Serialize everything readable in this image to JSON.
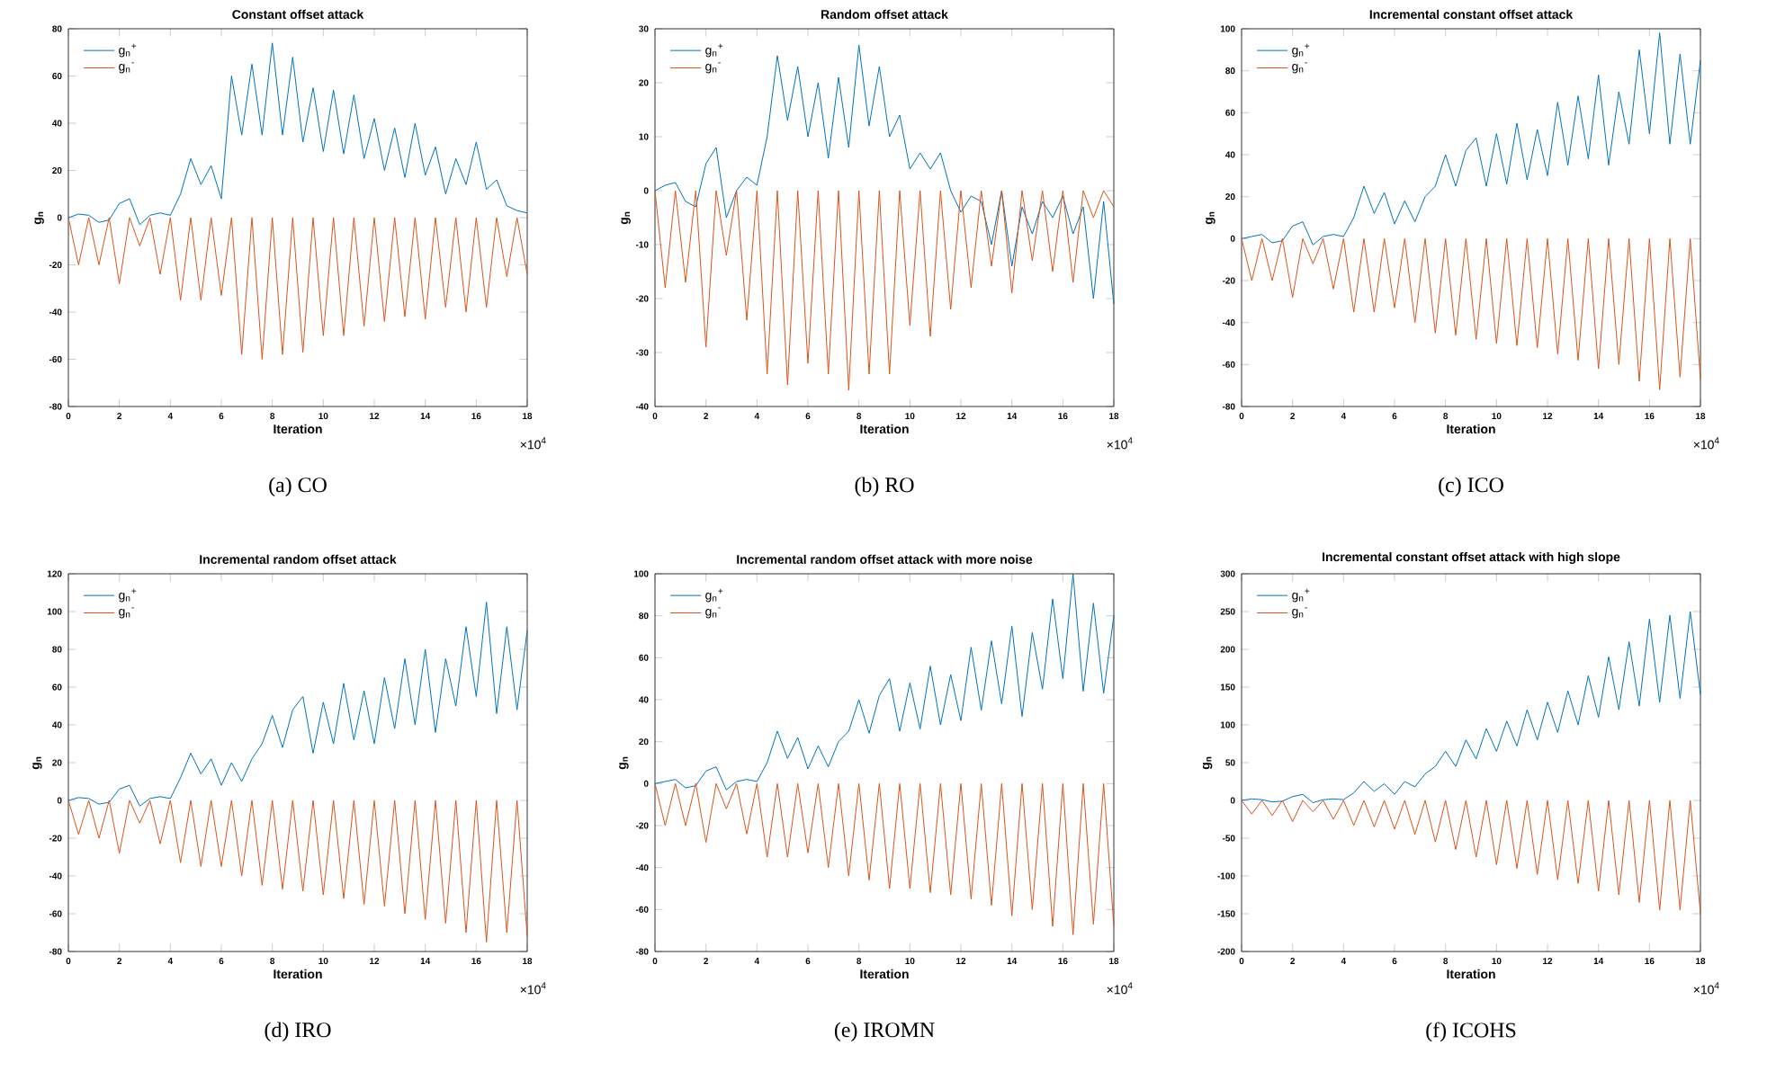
{
  "chart_data": [
    {
      "type": "line",
      "title": "Constant offset attack",
      "subtitle": "(a) CO",
      "xlabel": "Iteration",
      "ylabel": "g$_{n}$",
      "annotations": [
        "×10$^{4}$"
      ],
      "legend": "top left",
      "xlim": [
        0,
        18
      ],
      "ylim": [
        -80,
        80
      ],
      "xticks": [
        0,
        2,
        4,
        6,
        8,
        10,
        12,
        14,
        16,
        18
      ],
      "yticks": [
        -80,
        -60,
        -40,
        -20,
        0,
        20,
        40,
        60,
        80
      ],
      "x": [
        0,
        0.4,
        0.8,
        1.2,
        1.6,
        2,
        2.4,
        2.8,
        3.2,
        3.6,
        4,
        4.4,
        4.8,
        5.2,
        5.6,
        6,
        6.4,
        6.8,
        7.2,
        7.6,
        8,
        8.4,
        8.8,
        9.2,
        9.6,
        10,
        10.4,
        10.8,
        11.2,
        11.6,
        12,
        12.4,
        12.8,
        13.2,
        13.6,
        14,
        14.4,
        14.8,
        15.2,
        15.6,
        16,
        16.4,
        16.8,
        17.2,
        17.6,
        18
      ],
      "series": [
        {
          "name": "g$_{n}$$^{+}$",
          "color": "#0072bd",
          "values": [
            0,
            1.5,
            1,
            -2,
            -1,
            6,
            8,
            -3,
            1,
            2,
            1,
            10,
            25,
            14,
            22,
            8,
            60,
            35,
            65,
            35,
            74,
            35,
            68,
            32,
            55,
            28,
            54,
            27,
            52,
            25,
            42,
            20,
            38,
            17,
            40,
            18,
            30,
            10,
            25,
            14,
            32,
            12,
            16,
            5,
            3,
            2
          ]
        },
        {
          "name": "g$_{n}$$^{-}$",
          "color": "#d95319",
          "values": [
            0,
            -20,
            0,
            -20,
            0,
            -28,
            0,
            -12,
            0,
            -24,
            0,
            -35,
            0,
            -35,
            0,
            -33,
            0,
            -58,
            0,
            -60,
            0,
            -58,
            0,
            -57,
            0,
            -50,
            0,
            -50,
            0,
            -46,
            0,
            -44,
            0,
            -42,
            0,
            -43,
            0,
            -38,
            0,
            -40,
            0,
            -38,
            0,
            -25,
            0,
            -24
          ]
        }
      ]
    },
    {
      "type": "line",
      "title": "Random offset attack",
      "subtitle": "(b) RO",
      "xlabel": "Iteration",
      "ylabel": "g$_{n}$",
      "annotations": [
        "×10$^{4}$"
      ],
      "legend": "top left",
      "xlim": [
        0,
        18
      ],
      "ylim": [
        -40,
        30
      ],
      "xticks": [
        0,
        2,
        4,
        6,
        8,
        10,
        12,
        14,
        16,
        18
      ],
      "yticks": [
        -40,
        -30,
        -20,
        -10,
        0,
        10,
        20,
        30
      ],
      "x": [
        0,
        0.4,
        0.8,
        1.2,
        1.6,
        2,
        2.4,
        2.8,
        3.2,
        3.6,
        4,
        4.4,
        4.8,
        5.2,
        5.6,
        6,
        6.4,
        6.8,
        7.2,
        7.6,
        8,
        8.4,
        8.8,
        9.2,
        9.6,
        10,
        10.4,
        10.8,
        11.2,
        11.6,
        12,
        12.4,
        12.8,
        13.2,
        13.6,
        14,
        14.4,
        14.8,
        15.2,
        15.6,
        16,
        16.4,
        16.8,
        17.2,
        17.6,
        18
      ],
      "series": [
        {
          "name": "g$_{n}$$^{+}$",
          "color": "#0072bd",
          "values": [
            0,
            1,
            1.5,
            -2,
            -3,
            5,
            8,
            -5,
            0,
            2.5,
            1,
            10,
            25,
            13,
            23,
            10,
            20,
            6,
            21,
            8,
            27,
            12,
            23,
            10,
            14,
            4,
            7,
            4,
            7,
            0,
            -4,
            -1,
            -2,
            -10,
            0,
            -14,
            -3,
            -8,
            -2,
            -5,
            -1,
            -8,
            -3,
            -20,
            -2,
            -21
          ]
        },
        {
          "name": "g$_{n}$$^{-}$",
          "color": "#d95319",
          "values": [
            0,
            -18,
            0,
            -17,
            0,
            -29,
            0,
            -12,
            0,
            -24,
            0,
            -34,
            0,
            -36,
            0,
            -32,
            0,
            -34,
            0,
            -37,
            0,
            -34,
            0,
            -34,
            0,
            -25,
            0,
            -27,
            0,
            -22,
            0,
            -18,
            0,
            -14,
            0,
            -19,
            0,
            -13,
            0,
            -15,
            0,
            -17,
            0,
            -5,
            0,
            -3
          ]
        }
      ]
    },
    {
      "type": "line",
      "title": "Incremental constant offset attack",
      "subtitle": "(c) ICO",
      "xlabel": "Iteration",
      "ylabel": "g$_{n}$",
      "annotations": [
        "×10$^{4}$"
      ],
      "legend": "top left",
      "xlim": [
        0,
        18
      ],
      "ylim": [
        -80,
        100
      ],
      "xticks": [
        0,
        2,
        4,
        6,
        8,
        10,
        12,
        14,
        16,
        18
      ],
      "yticks": [
        -80,
        -60,
        -40,
        -20,
        0,
        20,
        40,
        60,
        80,
        100
      ],
      "x": [
        0,
        0.4,
        0.8,
        1.2,
        1.6,
        2,
        2.4,
        2.8,
        3.2,
        3.6,
        4,
        4.4,
        4.8,
        5.2,
        5.6,
        6,
        6.4,
        6.8,
        7.2,
        7.6,
        8,
        8.4,
        8.8,
        9.2,
        9.6,
        10,
        10.4,
        10.8,
        11.2,
        11.6,
        12,
        12.4,
        12.8,
        13.2,
        13.6,
        14,
        14.4,
        14.8,
        15.2,
        15.6,
        16,
        16.4,
        16.8,
        17.2,
        17.6,
        18
      ],
      "series": [
        {
          "name": "g$_{n}$$^{+}$",
          "color": "#0072bd",
          "values": [
            0,
            1,
            2,
            -2,
            -1,
            6,
            8,
            -3,
            1,
            2,
            1,
            10,
            25,
            12,
            22,
            7,
            18,
            8,
            20,
            25,
            40,
            25,
            42,
            48,
            25,
            50,
            26,
            55,
            28,
            52,
            30,
            65,
            35,
            68,
            38,
            78,
            35,
            70,
            45,
            90,
            50,
            98,
            45,
            88,
            45,
            85
          ]
        },
        {
          "name": "g$_{n}$$^{-}$",
          "color": "#d95319",
          "values": [
            0,
            -20,
            0,
            -20,
            0,
            -28,
            0,
            -12,
            0,
            -24,
            0,
            -35,
            0,
            -35,
            0,
            -33,
            0,
            -40,
            0,
            -45,
            0,
            -46,
            0,
            -48,
            0,
            -50,
            0,
            -51,
            0,
            -52,
            0,
            -55,
            0,
            -58,
            0,
            -62,
            0,
            -60,
            0,
            -68,
            0,
            -72,
            0,
            -66,
            0,
            -67
          ]
        }
      ]
    },
    {
      "type": "line",
      "title": "Incremental random offset attack",
      "subtitle": "(d) IRO",
      "xlabel": "Iteration",
      "ylabel": "g$_{n}$",
      "annotations": [
        "×10$^{4}$"
      ],
      "legend": "top left",
      "xlim": [
        0,
        18
      ],
      "ylim": [
        -80,
        120
      ],
      "xticks": [
        0,
        2,
        4,
        6,
        8,
        10,
        12,
        14,
        16,
        18
      ],
      "yticks": [
        -80,
        -60,
        -40,
        -20,
        0,
        20,
        40,
        60,
        80,
        100,
        120
      ],
      "x": [
        0,
        0.4,
        0.8,
        1.2,
        1.6,
        2,
        2.4,
        2.8,
        3.2,
        3.6,
        4,
        4.4,
        4.8,
        5.2,
        5.6,
        6,
        6.4,
        6.8,
        7.2,
        7.6,
        8,
        8.4,
        8.8,
        9.2,
        9.6,
        10,
        10.4,
        10.8,
        11.2,
        11.6,
        12,
        12.4,
        12.8,
        13.2,
        13.6,
        14,
        14.4,
        14.8,
        15.2,
        15.6,
        16,
        16.4,
        16.8,
        17.2,
        17.6,
        18
      ],
      "series": [
        {
          "name": "g$_{n}$$^{+}$",
          "color": "#0072bd",
          "values": [
            0,
            1.5,
            1,
            -2,
            -1,
            6,
            8,
            -3,
            1,
            2,
            1,
            12,
            25,
            14,
            22,
            8,
            20,
            10,
            22,
            30,
            45,
            28,
            48,
            55,
            25,
            52,
            30,
            62,
            32,
            58,
            30,
            65,
            38,
            75,
            40,
            80,
            36,
            75,
            50,
            92,
            55,
            105,
            46,
            92,
            48,
            90
          ]
        },
        {
          "name": "g$_{n}$$^{-}$",
          "color": "#d95319",
          "values": [
            0,
            -18,
            0,
            -20,
            0,
            -28,
            0,
            -12,
            0,
            -23,
            0,
            -33,
            0,
            -35,
            0,
            -35,
            0,
            -40,
            0,
            -45,
            0,
            -47,
            0,
            -48,
            0,
            -50,
            0,
            -52,
            0,
            -55,
            0,
            -56,
            0,
            -60,
            0,
            -63,
            0,
            -65,
            0,
            -70,
            0,
            -75,
            0,
            -70,
            0,
            -72
          ]
        }
      ]
    },
    {
      "type": "line",
      "title": "Incremental random offset attack with more noise",
      "subtitle": "(e) IROMN",
      "xlabel": "Iteration",
      "ylabel": "g$_{n}$",
      "annotations": [
        "×10$^{4}$"
      ],
      "legend": "top left",
      "xlim": [
        0,
        18
      ],
      "ylim": [
        -80,
        100
      ],
      "xticks": [
        0,
        2,
        4,
        6,
        8,
        10,
        12,
        14,
        16,
        18
      ],
      "yticks": [
        -80,
        -60,
        -40,
        -20,
        0,
        20,
        40,
        60,
        80,
        100
      ],
      "x": [
        0,
        0.4,
        0.8,
        1.2,
        1.6,
        2,
        2.4,
        2.8,
        3.2,
        3.6,
        4,
        4.4,
        4.8,
        5.2,
        5.6,
        6,
        6.4,
        6.8,
        7.2,
        7.6,
        8,
        8.4,
        8.8,
        9.2,
        9.6,
        10,
        10.4,
        10.8,
        11.2,
        11.6,
        12,
        12.4,
        12.8,
        13.2,
        13.6,
        14,
        14.4,
        14.8,
        15.2,
        15.6,
        16,
        16.4,
        16.8,
        17.2,
        17.6,
        18
      ],
      "series": [
        {
          "name": "g$_{n}$$^{+}$",
          "color": "#0072bd",
          "values": [
            0,
            1,
            2,
            -2,
            -1,
            6,
            8,
            -3,
            1,
            2,
            1,
            10,
            25,
            12,
            22,
            7,
            18,
            8,
            20,
            25,
            40,
            24,
            42,
            50,
            25,
            48,
            26,
            56,
            28,
            52,
            30,
            65,
            35,
            68,
            38,
            75,
            32,
            72,
            45,
            88,
            50,
            100,
            44,
            86,
            43,
            80
          ]
        },
        {
          "name": "g$_{n}$$^{-}$",
          "color": "#d95319",
          "values": [
            0,
            -20,
            0,
            -20,
            0,
            -28,
            0,
            -12,
            0,
            -24,
            0,
            -35,
            0,
            -35,
            0,
            -33,
            0,
            -40,
            0,
            -44,
            0,
            -46,
            0,
            -50,
            0,
            -50,
            0,
            -52,
            0,
            -53,
            0,
            -55,
            0,
            -58,
            0,
            -63,
            0,
            -60,
            0,
            -68,
            0,
            -72,
            0,
            -67,
            0,
            -68
          ]
        }
      ]
    },
    {
      "type": "line",
      "title": "Incremental constant offset attack with high slope",
      "subtitle": "(f) ICOHS",
      "xlabel": "Iteration",
      "ylabel": "g$_{n}$",
      "annotations": [
        "×10$^{4}$"
      ],
      "legend": "top left",
      "xlim": [
        0,
        18
      ],
      "ylim": [
        -200,
        300
      ],
      "xticks": [
        0,
        2,
        4,
        6,
        8,
        10,
        12,
        14,
        16,
        18
      ],
      "yticks": [
        -200,
        -150,
        -100,
        -50,
        0,
        50,
        100,
        150,
        200,
        250,
        300
      ],
      "x": [
        0,
        0.4,
        0.8,
        1.2,
        1.6,
        2,
        2.4,
        2.8,
        3.2,
        3.6,
        4,
        4.4,
        4.8,
        5.2,
        5.6,
        6,
        6.4,
        6.8,
        7.2,
        7.6,
        8,
        8.4,
        8.8,
        9.2,
        9.6,
        10,
        10.4,
        10.8,
        11.2,
        11.6,
        12,
        12.4,
        12.8,
        13.2,
        13.6,
        14,
        14.4,
        14.8,
        15.2,
        15.6,
        16,
        16.4,
        16.8,
        17.2,
        17.6,
        18
      ],
      "series": [
        {
          "name": "g$_{n}$$^{+}$",
          "color": "#0072bd",
          "values": [
            0,
            2,
            1,
            -2,
            -1,
            5,
            8,
            -3,
            1,
            2,
            1,
            10,
            25,
            12,
            22,
            8,
            25,
            18,
            35,
            45,
            65,
            45,
            80,
            55,
            95,
            65,
            105,
            72,
            120,
            80,
            130,
            90,
            145,
            100,
            165,
            110,
            190,
            120,
            210,
            125,
            240,
            130,
            245,
            135,
            250,
            140
          ]
        },
        {
          "name": "g$_{n}$$^{-}$",
          "color": "#d95319",
          "values": [
            0,
            -18,
            0,
            -20,
            0,
            -28,
            0,
            -15,
            0,
            -25,
            0,
            -33,
            0,
            -35,
            0,
            -38,
            0,
            -45,
            0,
            -55,
            0,
            -65,
            0,
            -75,
            0,
            -85,
            0,
            -90,
            0,
            -98,
            0,
            -105,
            0,
            -110,
            0,
            -120,
            0,
            -125,
            0,
            -135,
            0,
            -145,
            0,
            -145,
            0,
            -150
          ]
        }
      ]
    }
  ]
}
